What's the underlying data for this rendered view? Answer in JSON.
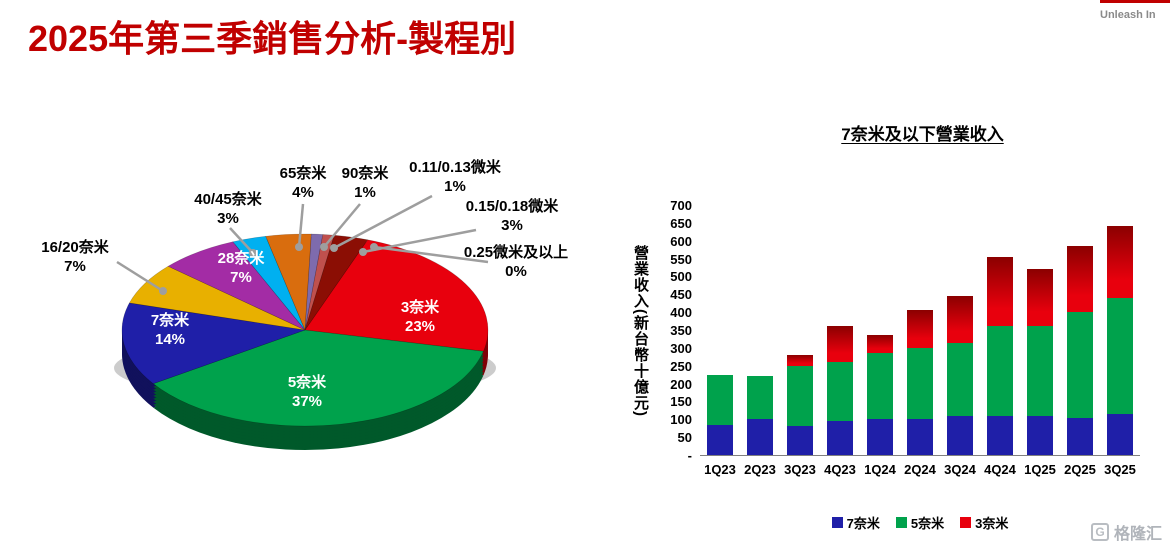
{
  "page": {
    "title": "2025年第三季銷售分析-製程別",
    "title_color": "#C00000",
    "brand_text": "Unleash In",
    "watermark_text": "格隆汇",
    "watermark_icon": "G"
  },
  "chart_data": [
    {
      "type": "pie",
      "unit": "%",
      "start_angle_deg": -70,
      "direction": "clockwise",
      "slices": [
        {
          "label": "3奈米",
          "pct": 23,
          "color": "#E8000D",
          "label_placement": "inside"
        },
        {
          "label": "5奈米",
          "pct": 37,
          "color": "#00A24C",
          "label_placement": "inside"
        },
        {
          "label": "7奈米",
          "pct": 14,
          "color": "#1F1FA8",
          "label_placement": "inside"
        },
        {
          "label": "16/20奈米",
          "pct": 7,
          "color": "#E8B000",
          "label_placement": "outside"
        },
        {
          "label": "28奈米",
          "pct": 7,
          "color": "#A32CA5",
          "label_placement": "inside"
        },
        {
          "label": "40/45奈米",
          "pct": 3,
          "color": "#00B0F0",
          "label_placement": "outside"
        },
        {
          "label": "65奈米",
          "pct": 4,
          "color": "#D96D0E",
          "label_placement": "outside"
        },
        {
          "label": "90奈米",
          "pct": 1,
          "color": "#7E6BAD",
          "label_placement": "outside"
        },
        {
          "label": "0.11/0.13微米",
          "pct": 1,
          "color": "#C0504D",
          "label_placement": "outside"
        },
        {
          "label": "0.15/0.18微米",
          "pct": 3,
          "color": "#8B0E04",
          "label_placement": "outside"
        },
        {
          "label": "0.25微米及以上",
          "pct": 0,
          "color": "#808080",
          "label_placement": "outside"
        }
      ]
    },
    {
      "type": "bar",
      "stacked": true,
      "title": "7奈米及以下營業收入",
      "ylabel": "營業收入(新台幣十億元)",
      "categories": [
        "1Q23",
        "2Q23",
        "3Q23",
        "4Q23",
        "1Q24",
        "2Q24",
        "3Q24",
        "4Q24",
        "1Q25",
        "2Q25",
        "3Q25"
      ],
      "series": [
        {
          "name": "7奈米",
          "color": "#1F1FA8",
          "values": [
            85,
            100,
            80,
            95,
            100,
            100,
            110,
            110,
            110,
            105,
            115
          ]
        },
        {
          "name": "5奈米",
          "color": "#00A24C",
          "values": [
            140,
            122,
            170,
            165,
            185,
            200,
            205,
            250,
            250,
            295,
            325
          ]
        },
        {
          "name": "3奈米",
          "color": "#E8000D",
          "color_top": "#8B0000",
          "values": [
            0,
            0,
            30,
            100,
            50,
            105,
            130,
            195,
            160,
            185,
            200
          ]
        }
      ],
      "ylim": [
        0,
        700
      ],
      "ytick_step": 50,
      "zero_tick_label": "-",
      "legend_position": "bottom",
      "grid": false
    }
  ]
}
